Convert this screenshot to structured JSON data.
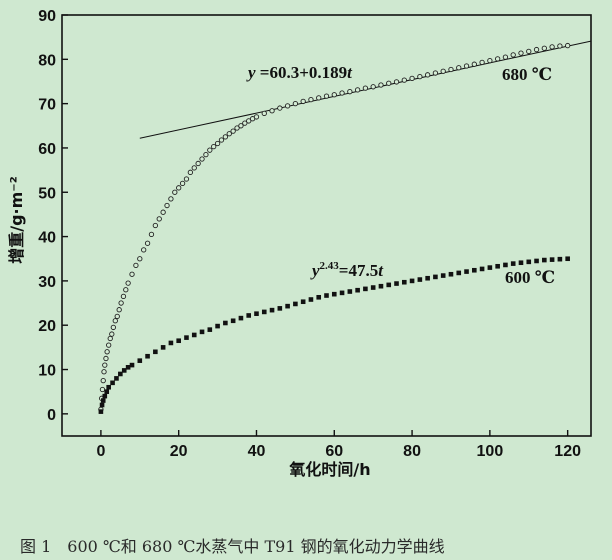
{
  "chart_data": {
    "type": "scatter",
    "xlabel": "氧化时间/h",
    "ylabel": "增重/g·m⁻²",
    "xlim": [
      -10,
      126
    ],
    "ylim": [
      -5,
      90
    ],
    "xticks": [
      "0",
      "20",
      "40",
      "60",
      "80",
      "100",
      "120"
    ],
    "yticks": [
      "0",
      "10",
      "20",
      "30",
      "40",
      "50",
      "60",
      "70",
      "80",
      "90"
    ],
    "caption": "图 1　600 ℃和 680 ℃水蒸气中 T91 钢的氧化动力学曲线",
    "fit_line": {
      "equation": "y =60.3+0.189t",
      "intercept": 60.3,
      "slope": 0.189,
      "x_range": [
        10,
        126
      ]
    },
    "series": [
      {
        "name": "680 ℃",
        "marker": "open-circle",
        "points": [
          [
            0,
            1
          ],
          [
            0.2,
            3.5
          ],
          [
            0.4,
            5.5
          ],
          [
            0.6,
            7.5
          ],
          [
            0.8,
            9.5
          ],
          [
            1.0,
            11.0
          ],
          [
            1.3,
            12.5
          ],
          [
            1.6,
            14.0
          ],
          [
            2.0,
            15.5
          ],
          [
            2.4,
            17.0
          ],
          [
            2.8,
            18.0
          ],
          [
            3.2,
            19.5
          ],
          [
            3.7,
            21.0
          ],
          [
            4.2,
            22.0
          ],
          [
            4.7,
            23.5
          ],
          [
            5.2,
            25.0
          ],
          [
            5.8,
            26.5
          ],
          [
            6.4,
            28.0
          ],
          [
            7.0,
            29.5
          ],
          [
            8.0,
            31.5
          ],
          [
            9.0,
            33.5
          ],
          [
            10.0,
            35.0
          ],
          [
            11.0,
            37.0
          ],
          [
            12.0,
            38.5
          ],
          [
            13.0,
            40.5
          ],
          [
            14.0,
            42.5
          ],
          [
            15.0,
            44.0
          ],
          [
            16.0,
            45.5
          ],
          [
            17.0,
            47.0
          ],
          [
            18.0,
            48.5
          ],
          [
            19.0,
            50.0
          ],
          [
            20.0,
            51.0
          ],
          [
            21.0,
            52.0
          ],
          [
            22.0,
            53.0
          ],
          [
            23.0,
            54.5
          ],
          [
            24.0,
            55.5
          ],
          [
            25.0,
            56.5
          ],
          [
            26.0,
            57.5
          ],
          [
            27.0,
            58.5
          ],
          [
            28.0,
            59.5
          ],
          [
            29.0,
            60.3
          ],
          [
            30.0,
            61.0
          ],
          [
            31.0,
            61.8
          ],
          [
            32.0,
            62.5
          ],
          [
            33.0,
            63.2
          ],
          [
            34.0,
            63.8
          ],
          [
            35.0,
            64.5
          ],
          [
            36.0,
            65.0
          ],
          [
            37.0,
            65.6
          ],
          [
            38.0,
            66.1
          ],
          [
            39.0,
            66.6
          ],
          [
            40.0,
            67.0
          ],
          [
            42.0,
            67.8
          ],
          [
            44.0,
            68.4
          ],
          [
            46.0,
            69.0
          ],
          [
            48.0,
            69.5
          ],
          [
            50.0,
            70.0
          ],
          [
            52.0,
            70.5
          ],
          [
            54.0,
            70.9
          ],
          [
            56.0,
            71.3
          ],
          [
            58.0,
            71.7
          ],
          [
            60.0,
            72.0
          ],
          [
            62.0,
            72.4
          ],
          [
            64.0,
            72.7
          ],
          [
            66.0,
            73.1
          ],
          [
            68.0,
            73.5
          ],
          [
            70.0,
            73.8
          ],
          [
            72.0,
            74.2
          ],
          [
            74.0,
            74.6
          ],
          [
            76.0,
            74.9
          ],
          [
            78.0,
            75.3
          ],
          [
            80.0,
            75.7
          ],
          [
            82.0,
            76.1
          ],
          [
            84.0,
            76.5
          ],
          [
            86.0,
            76.9
          ],
          [
            88.0,
            77.3
          ],
          [
            90.0,
            77.7
          ],
          [
            92.0,
            78.1
          ],
          [
            94.0,
            78.5
          ],
          [
            96.0,
            78.9
          ],
          [
            98.0,
            79.3
          ],
          [
            100.0,
            79.7
          ],
          [
            102.0,
            80.1
          ],
          [
            104.0,
            80.5
          ],
          [
            106.0,
            81.0
          ],
          [
            108.0,
            81.4
          ],
          [
            110.0,
            81.8
          ],
          [
            112.0,
            82.2
          ],
          [
            114.0,
            82.5
          ],
          [
            116.0,
            82.8
          ],
          [
            118.0,
            83.0
          ],
          [
            120.0,
            83.1
          ]
        ]
      },
      {
        "name": "600 ℃",
        "equation": "y^2.43=47.5t",
        "marker": "filled-square",
        "points": [
          [
            0,
            0.5
          ],
          [
            0.3,
            2.0
          ],
          [
            0.6,
            3.0
          ],
          [
            1.0,
            4.0
          ],
          [
            1.5,
            5.0
          ],
          [
            2.0,
            6.0
          ],
          [
            3.0,
            7.0
          ],
          [
            4.0,
            8.0
          ],
          [
            5.0,
            9.0
          ],
          [
            6.0,
            9.8
          ],
          [
            7.0,
            10.5
          ],
          [
            8.0,
            11.0
          ],
          [
            10.0,
            12.0
          ],
          [
            12.0,
            13.0
          ],
          [
            14.0,
            14.0
          ],
          [
            16.0,
            15.0
          ],
          [
            18.0,
            16.0
          ],
          [
            20.0,
            16.5
          ],
          [
            22.0,
            17.2
          ],
          [
            24.0,
            17.8
          ],
          [
            26.0,
            18.5
          ],
          [
            28.0,
            19.0
          ],
          [
            30.0,
            19.8
          ],
          [
            32.0,
            20.5
          ],
          [
            34.0,
            21.0
          ],
          [
            36.0,
            21.6
          ],
          [
            38.0,
            22.2
          ],
          [
            40.0,
            22.6
          ],
          [
            42.0,
            23.0
          ],
          [
            44.0,
            23.4
          ],
          [
            46.0,
            23.8
          ],
          [
            48.0,
            24.3
          ],
          [
            50.0,
            24.8
          ],
          [
            52.0,
            25.3
          ],
          [
            54.0,
            25.8
          ],
          [
            56.0,
            26.3
          ],
          [
            58.0,
            26.7
          ],
          [
            60.0,
            27.0
          ],
          [
            62.0,
            27.3
          ],
          [
            64.0,
            27.6
          ],
          [
            66.0,
            27.9
          ],
          [
            68.0,
            28.2
          ],
          [
            70.0,
            28.5
          ],
          [
            72.0,
            28.8
          ],
          [
            74.0,
            29.1
          ],
          [
            76.0,
            29.4
          ],
          [
            78.0,
            29.7
          ],
          [
            80.0,
            30.0
          ],
          [
            82.0,
            30.3
          ],
          [
            84.0,
            30.6
          ],
          [
            86.0,
            30.9
          ],
          [
            88.0,
            31.2
          ],
          [
            90.0,
            31.5
          ],
          [
            92.0,
            31.8
          ],
          [
            94.0,
            32.1
          ],
          [
            96.0,
            32.4
          ],
          [
            98.0,
            32.7
          ],
          [
            100.0,
            33.0
          ],
          [
            102.0,
            33.3
          ],
          [
            104.0,
            33.6
          ],
          [
            106.0,
            33.9
          ],
          [
            108.0,
            34.1
          ],
          [
            110.0,
            34.3
          ],
          [
            112.0,
            34.5
          ],
          [
            114.0,
            34.7
          ],
          [
            116.0,
            34.8
          ],
          [
            118.0,
            34.9
          ],
          [
            120.0,
            35.0
          ]
        ]
      }
    ]
  }
}
